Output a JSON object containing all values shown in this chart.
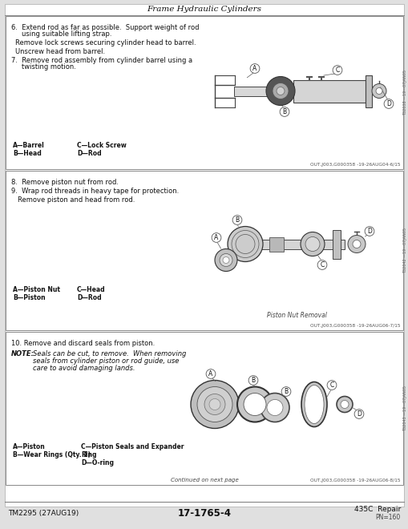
{
  "title": "Frame Hydraulic Cylinders",
  "footer_left": "TM2295 (27AUG19)",
  "footer_center": "17-1765-4",
  "footer_right_line1": "435C  Repair",
  "footer_right_line2": "PN=160",
  "s1_footnote": "OUT,J003,G000358 -19-26AUG04-6/15",
  "s2_footnote": "OUT,J003,G000358 -19-26AUG06-7/15",
  "s3_footnote": "OUT,J003,G000358 -19-26AUG06-8/15",
  "s2_caption": "Piston Nut Removal",
  "s3_continued": "Continued on next page",
  "s1_side_label": "T32038 —19—07JAN05",
  "s2_side_label": "T32042 —19—07JAN05",
  "s3_side_label": "T32043 —19—07JAN05",
  "page_bg": "#e0e0e0",
  "white": "#ffffff",
  "border_color": "#888888",
  "text_color": "#111111",
  "dim_color": "#444444"
}
